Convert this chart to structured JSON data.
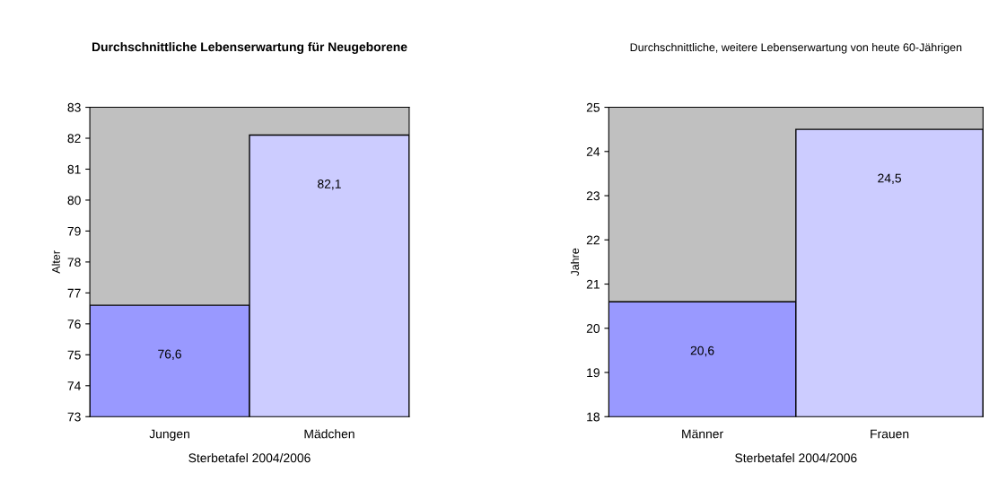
{
  "chart_data": [
    {
      "type": "bar",
      "title": "Durchschnittliche Lebenserwartung für Neugeborene",
      "xlabel": "Sterbetafel 2004/2006",
      "ylabel": "Alter",
      "categories": [
        "Jungen",
        "Mädchen"
      ],
      "values": [
        76.6,
        82.1
      ],
      "colors": [
        "#9999ff",
        "#ccccff"
      ],
      "value_labels": [
        "76,6",
        "82,1"
      ],
      "ylim": [
        73,
        83
      ],
      "yticks": [
        73,
        74,
        75,
        76,
        77,
        78,
        79,
        80,
        81,
        82,
        83
      ],
      "grid": false,
      "legend": false
    },
    {
      "type": "bar",
      "title": "Durchschnittliche, weitere Lebenserwartung von heute 60-Jährigen",
      "xlabel": "Sterbetafel 2004/2006",
      "ylabel": "Jahre",
      "categories": [
        "Männer",
        "Frauen"
      ],
      "values": [
        20.6,
        24.5
      ],
      "colors": [
        "#9999ff",
        "#ccccff"
      ],
      "value_labels": [
        "20,6",
        "24,5"
      ],
      "ylim": [
        18,
        25
      ],
      "yticks": [
        18,
        19,
        20,
        21,
        22,
        23,
        24,
        25
      ],
      "grid": false,
      "legend": false
    }
  ]
}
